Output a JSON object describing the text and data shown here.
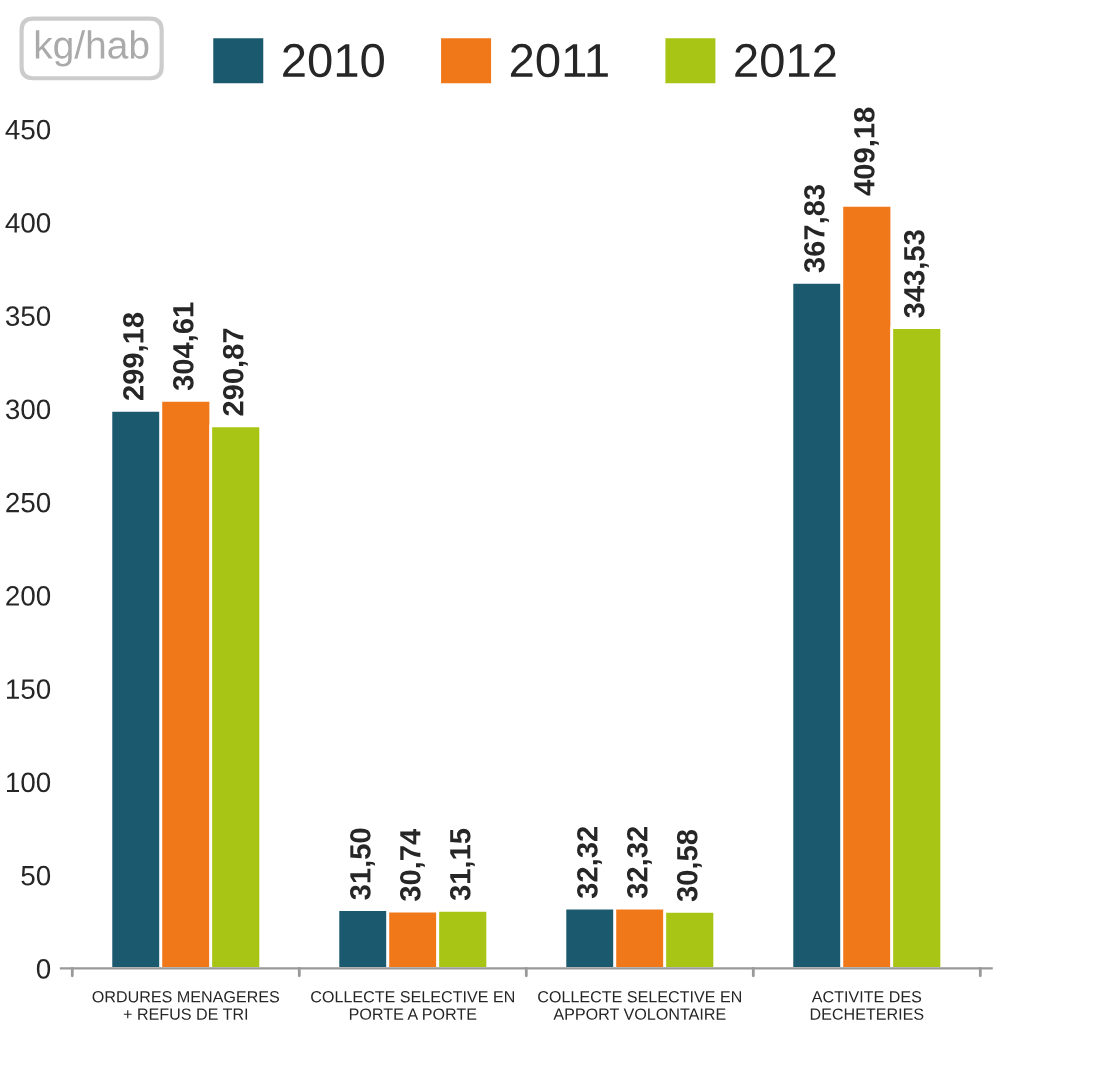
{
  "chart_data": {
    "type": "bar",
    "ylabel": "kg/hab",
    "categories": [
      "ORDURES MENAGERES\n+ REFUS DE TRI",
      "COLLECTE SELECTIVE EN\nPORTE A PORTE",
      "COLLECTE SELECTIVE EN\nAPPORT VOLONTAIRE",
      "ACTIVITE DES\nDECHETERIES"
    ],
    "series": [
      {
        "name": "2010",
        "color": "#1b5a6e",
        "values": [
          299.18,
          31.5,
          32.32,
          367.83
        ],
        "value_labels": [
          "299,18",
          "31,50",
          "32,32",
          "367,83"
        ]
      },
      {
        "name": "2011",
        "color": "#f07818",
        "values": [
          304.61,
          30.74,
          32.32,
          409.18
        ],
        "value_labels": [
          "304,61",
          "30,74",
          "32,32",
          "409,18"
        ]
      },
      {
        "name": "2012",
        "color": "#a8c414",
        "values": [
          290.87,
          31.15,
          30.58,
          343.53
        ],
        "value_labels": [
          "290,87",
          "31,15",
          "30,58",
          "343,53"
        ]
      }
    ],
    "ylim": [
      0,
      450
    ],
    "yticks": [
      0,
      50,
      100,
      150,
      200,
      250,
      300,
      350,
      400,
      450
    ],
    "grid": false,
    "legend": "top"
  }
}
